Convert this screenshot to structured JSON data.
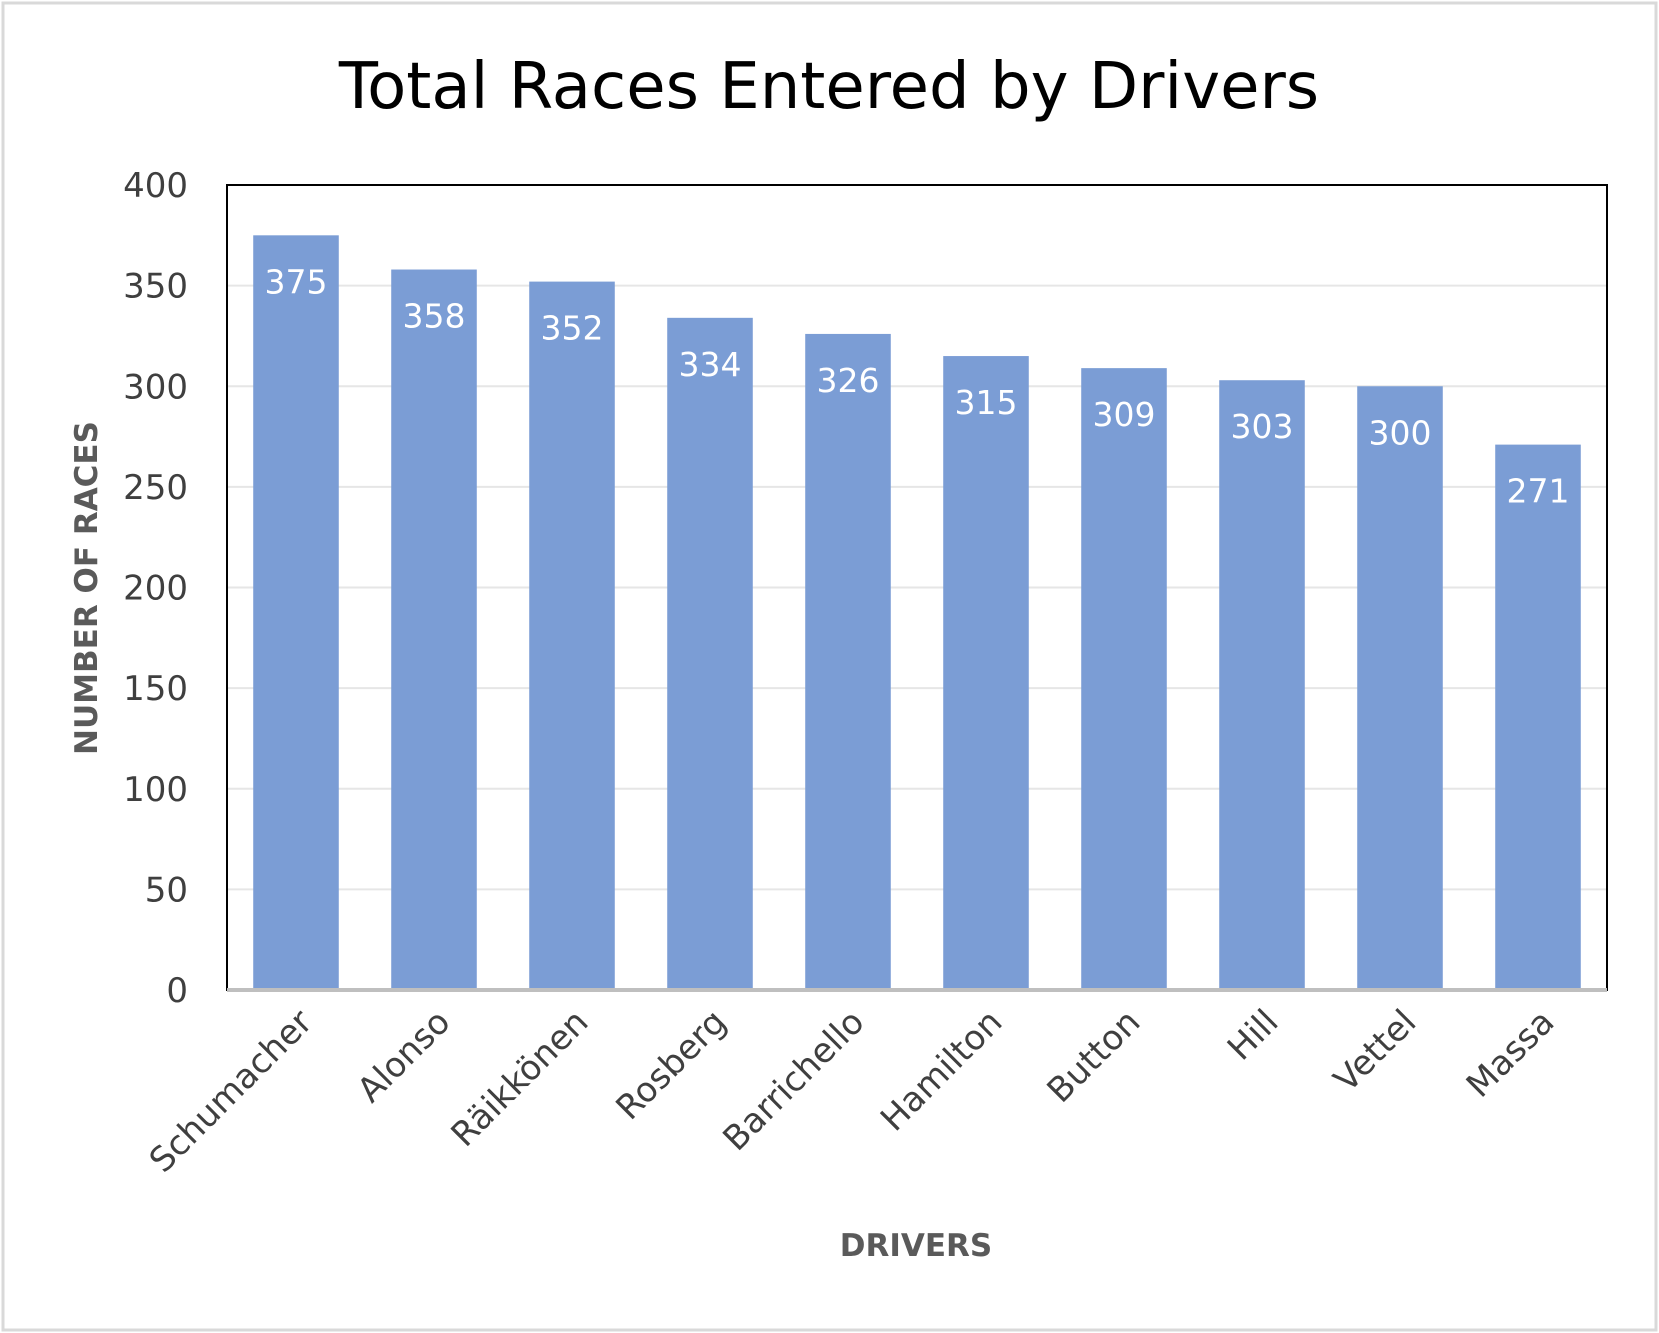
{
  "chart_data": {
    "type": "bar",
    "title": "Total Races Entered by Drivers",
    "xlabel": "DRIVERS",
    "ylabel": "NUMBER OF RACES",
    "categories": [
      "Schumacher",
      "Alonso",
      "Räikkönen",
      "Rosberg",
      "Barrichello",
      "Hamilton",
      "Button",
      "Hill",
      "Vettel",
      "Massa"
    ],
    "values": [
      375,
      358,
      352,
      334,
      326,
      315,
      309,
      303,
      300,
      271
    ],
    "ylim": [
      0,
      400
    ],
    "yticks": [
      0,
      50,
      100,
      150,
      200,
      250,
      300,
      350,
      400
    ],
    "grid": true,
    "legend": "none",
    "data_labels": "inside-end",
    "colors": {
      "bar": "#7b9dd5",
      "gridline": "#e6e6e6",
      "plot_border": "#000000",
      "baseline": "#bfbfbf",
      "frame_border": "#d9d9d9"
    }
  }
}
